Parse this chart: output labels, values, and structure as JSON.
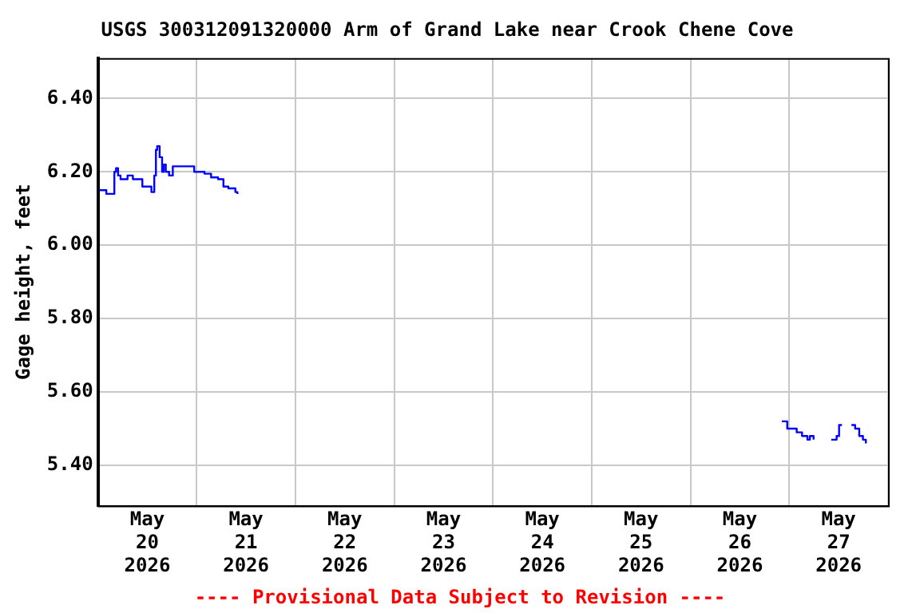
{
  "chart_data": {
    "type": "step",
    "title": "USGS 300312091320000 Arm of Grand Lake near Crook Chene Cove",
    "ylabel": "Gage height, feet",
    "annotations": [
      "---- Provisional Data Subject to Revision ----"
    ],
    "x": [
      "2026-05-20T00:06",
      "2026-05-20T02:03",
      "2026-05-20T03:45",
      "2026-05-20T04:00",
      "2026-05-20T04:24",
      "2026-05-20T04:54",
      "2026-05-20T05:30",
      "2026-05-20T07:12",
      "2026-05-20T08:30",
      "2026-05-20T10:12",
      "2026-05-20T10:48",
      "2026-05-20T12:06",
      "2026-05-20T13:00",
      "2026-05-20T13:42",
      "2026-05-20T14:06",
      "2026-05-20T14:24",
      "2026-05-20T15:00",
      "2026-05-20T15:36",
      "2026-05-20T16:00",
      "2026-05-20T16:30",
      "2026-05-20T17:18",
      "2026-05-20T18:12",
      "2026-05-20T22:42",
      "2026-05-20T23:24",
      "2026-05-21T01:54",
      "2026-05-21T03:30",
      "2026-05-21T05:12",
      "2026-05-21T06:30",
      "2026-05-21T07:42",
      "2026-05-21T09:24",
      "2026-05-21T09:54",
      "2026-05-21T12:00",
      "2026-05-26T22:12",
      "2026-05-26T23:30",
      "2026-05-27T00:48",
      "2026-05-27T01:48",
      "2026-05-27T03:06",
      "2026-05-27T04:24",
      "2026-05-27T05:00",
      "2026-05-27T05:54",
      "2026-05-27T06:30",
      "2026-05-27T10:12",
      "2026-05-27T11:30",
      "2026-05-27T12:06",
      "2026-05-27T12:48",
      "2026-05-27T14:00",
      "2026-05-27T15:06",
      "2026-05-27T16:00",
      "2026-05-27T17:00",
      "2026-05-27T17:54",
      "2026-05-27T18:36"
    ],
    "series": [
      {
        "color": "#0000ff",
        "values": [
          6.15,
          6.14,
          6.14,
          6.2,
          6.21,
          6.19,
          6.18,
          6.19,
          6.18,
          6.18,
          6.16,
          6.16,
          6.145,
          6.19,
          6.26,
          6.27,
          6.24,
          6.2,
          6.22,
          6.2,
          6.19,
          6.215,
          6.215,
          6.2,
          6.195,
          6.185,
          6.18,
          6.16,
          6.155,
          6.145,
          6.14,
          null,
          5.52,
          5.5,
          5.5,
          5.49,
          5.48,
          5.47,
          5.48,
          5.47,
          null,
          5.47,
          5.48,
          5.51,
          5.51,
          null,
          5.51,
          5.5,
          5.48,
          5.47,
          5.46
        ]
      }
    ],
    "xlim": [
      "2026-05-20T00:00",
      "2026-05-28T00:00"
    ],
    "xticks": [
      {
        "value": "2026-05-20T00:00",
        "label": null
      },
      {
        "value": "2026-05-20T12:00",
        "label": "May\n20\n2026"
      },
      {
        "value": "2026-05-21T00:00",
        "label": null
      },
      {
        "value": "2026-05-21T12:00",
        "label": "May\n21\n2026"
      },
      {
        "value": "2026-05-22T00:00",
        "label": null
      },
      {
        "value": "2026-05-22T12:00",
        "label": "May\n22\n2026"
      },
      {
        "value": "2026-05-23T00:00",
        "label": null
      },
      {
        "value": "2026-05-23T12:00",
        "label": "May\n23\n2026"
      },
      {
        "value": "2026-05-24T00:00",
        "label": null
      },
      {
        "value": "2026-05-24T12:00",
        "label": "May\n24\n2026"
      },
      {
        "value": "2026-05-25T00:00",
        "label": null
      },
      {
        "value": "2026-05-25T12:00",
        "label": "May\n25\n2026"
      },
      {
        "value": "2026-05-26T00:00",
        "label": null
      },
      {
        "value": "2026-05-26T12:00",
        "label": "May\n26\n2026"
      },
      {
        "value": "2026-05-27T00:00",
        "label": null
      },
      {
        "value": "2026-05-27T12:00",
        "label": "May\n27\n2026"
      },
      {
        "value": "2026-05-28T00:00",
        "label": null
      }
    ],
    "ylim": [
      5.29,
      6.51
    ],
    "yticks": [
      {
        "value": 5.4,
        "label": "5.40"
      },
      {
        "value": 5.6,
        "label": "5.60"
      },
      {
        "value": 5.8,
        "label": "5.80"
      },
      {
        "value": 6.0,
        "label": "6.00"
      },
      {
        "value": 6.2,
        "label": "6.20"
      },
      {
        "value": 6.4,
        "label": "6.40"
      }
    ],
    "grid": true,
    "legend": false
  }
}
